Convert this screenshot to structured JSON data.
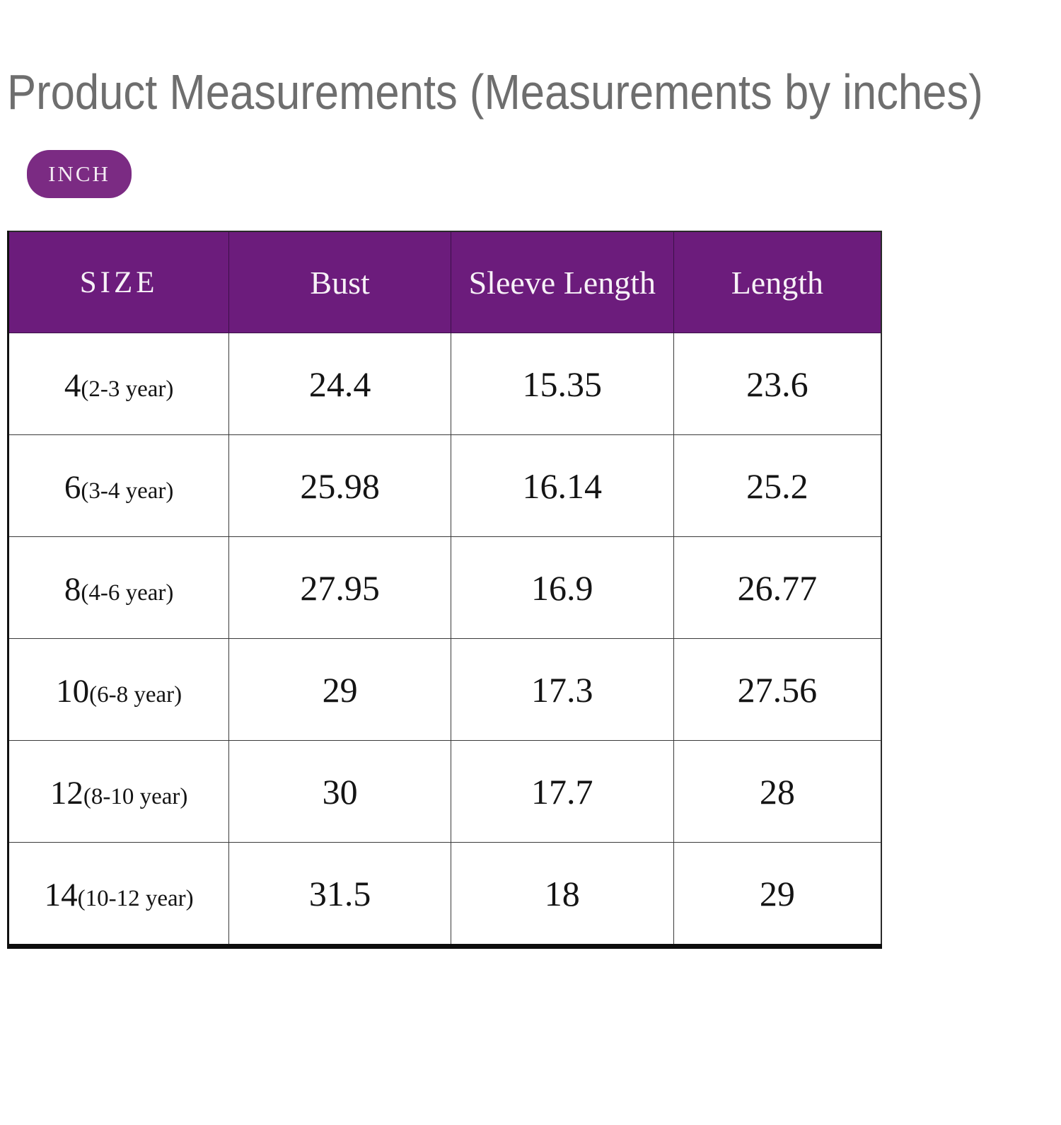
{
  "page": {
    "title": "Product Measurements (Measurements by inches)",
    "unit_badge_label": "INCH"
  },
  "colors": {
    "header_purple": "#6c1c7c",
    "badge_purple": "#7b2b83",
    "title_gray": "#6e6e6e"
  },
  "table": {
    "columns": [
      "SIZE",
      "Bust",
      "Sleeve Length",
      "Length"
    ],
    "rows": [
      {
        "size": "4",
        "age": "(2-3 year)",
        "bust": "24.4",
        "sleeve_length": "15.35",
        "length": "23.6"
      },
      {
        "size": "6",
        "age": "(3-4 year)",
        "bust": "25.98",
        "sleeve_length": "16.14",
        "length": "25.2"
      },
      {
        "size": "8",
        "age": "(4-6 year)",
        "bust": "27.95",
        "sleeve_length": "16.9",
        "length": "26.77"
      },
      {
        "size": "10",
        "age": "(6-8 year)",
        "bust": "29",
        "sleeve_length": "17.3",
        "length": "27.56"
      },
      {
        "size": "12",
        "age": "(8-10 year)",
        "bust": "30",
        "sleeve_length": "17.7",
        "length": "28"
      },
      {
        "size": "14",
        "age": "(10-12 year)",
        "bust": "31.5",
        "sleeve_length": "18",
        "length": "29"
      }
    ]
  },
  "chart_data": {
    "type": "table",
    "title": "Product Measurements (Measurements by inches)",
    "unit": "INCH",
    "columns": [
      "SIZE",
      "Bust",
      "Sleeve Length",
      "Length"
    ],
    "rows": [
      [
        "4(2-3 year)",
        24.4,
        15.35,
        23.6
      ],
      [
        "6(3-4 year)",
        25.98,
        16.14,
        25.2
      ],
      [
        "8(4-6 year)",
        27.95,
        16.9,
        26.77
      ],
      [
        "10(6-8 year)",
        29,
        17.3,
        27.56
      ],
      [
        "12(8-10 year)",
        30,
        17.7,
        28
      ],
      [
        "14(10-12 year)",
        31.5,
        18,
        29
      ]
    ]
  }
}
